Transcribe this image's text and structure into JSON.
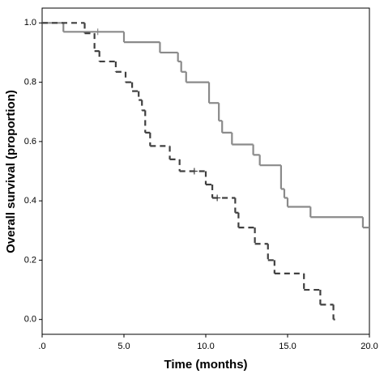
{
  "chart_data": {
    "type": "step",
    "xlabel": "Time (months)",
    "ylabel": "Overall survival (proportion)",
    "xlim": [
      0,
      20
    ],
    "ylim": [
      -0.05,
      1.05
    ],
    "xticks": [
      {
        "value": 0,
        "label": ".0"
      },
      {
        "value": 5,
        "label": "5.0"
      },
      {
        "value": 10,
        "label": "10.0"
      },
      {
        "value": 15,
        "label": "15.0"
      },
      {
        "value": 20,
        "label": "20.0"
      }
    ],
    "yticks": [
      {
        "value": 0,
        "label": "0.0"
      },
      {
        "value": 0.2,
        "label": "0.2"
      },
      {
        "value": 0.4,
        "label": "0.4"
      },
      {
        "value": 0.6,
        "label": "0.6"
      },
      {
        "value": 0.8,
        "label": "0.8"
      },
      {
        "value": 1,
        "label": "1.0"
      }
    ],
    "series": [
      {
        "color": "#8a8a8a",
        "dash": false,
        "x_end": 20,
        "x": [
          0,
          1.3,
          5.0,
          7.2,
          8.3,
          8.5,
          8.8,
          10.2,
          10.8,
          11.0,
          11.6,
          12.9,
          13.3,
          14.6,
          14.8,
          15.0,
          16.4,
          19.6
        ],
        "values": [
          1.0,
          0.97,
          0.935,
          0.9,
          0.87,
          0.835,
          0.8,
          0.73,
          0.67,
          0.63,
          0.59,
          0.555,
          0.52,
          0.44,
          0.41,
          0.38,
          0.345,
          0.31
        ],
        "censored": {
          "x": [
            3.4
          ],
          "values": [
            0.97
          ]
        }
      },
      {
        "color": "#404040",
        "dash": true,
        "x_end": 17.9,
        "x": [
          0,
          2.6,
          3.2,
          3.5,
          4.5,
          5.1,
          5.5,
          5.9,
          6.1,
          6.3,
          6.6,
          7.8,
          8.4,
          10.0,
          10.4,
          11.8,
          12.0,
          13.0,
          13.8,
          14.2,
          16.0,
          17.0,
          17.8
        ],
        "values": [
          1.0,
          0.965,
          0.905,
          0.87,
          0.835,
          0.8,
          0.77,
          0.74,
          0.705,
          0.63,
          0.585,
          0.54,
          0.5,
          0.455,
          0.41,
          0.36,
          0.31,
          0.255,
          0.2,
          0.155,
          0.1,
          0.05,
          0.0
        ],
        "censored": {
          "x": [
            9.3,
            10.7
          ],
          "values": [
            0.5,
            0.41
          ]
        }
      }
    ]
  }
}
